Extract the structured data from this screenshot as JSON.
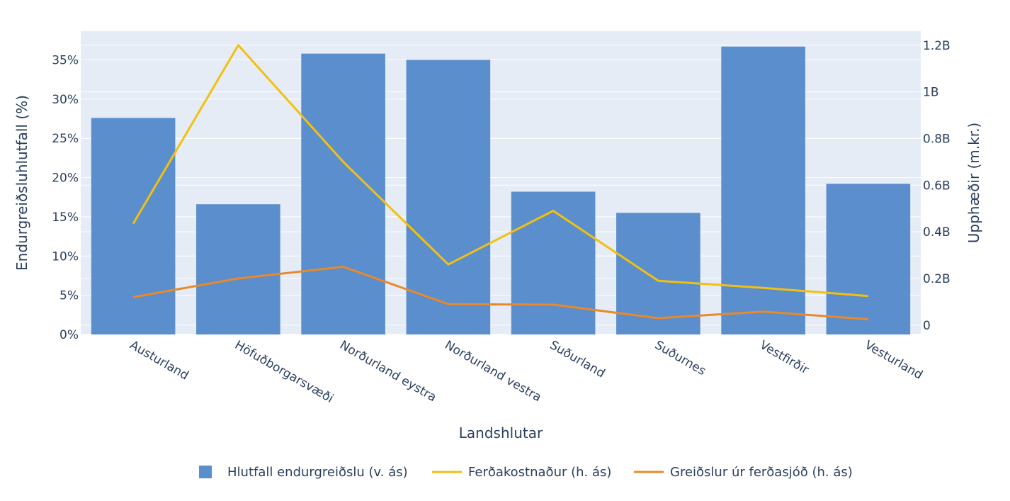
{
  "chart_data": {
    "type": "bar+line",
    "categories": [
      "Austurland",
      "Höfuðborgarsvæði",
      "Norðurland eystra",
      "Norðurland vestra",
      "Suðurland",
      "Suðurnes",
      "Vestfirðir",
      "Vesturland"
    ],
    "bar_series": {
      "name": "Hlutfall endurgreiðslu (v. ás)",
      "axis": "left",
      "values": [
        0.276,
        0.166,
        0.358,
        0.35,
        0.182,
        0.155,
        0.367,
        0.192
      ],
      "color": "#5b8ecd"
    },
    "line_series": [
      {
        "name": "Ferðakostnaður (h. ás)",
        "axis": "right",
        "values": [
          435000000,
          1200000000,
          700000000,
          260000000,
          490000000,
          190000000,
          160000000,
          125000000
        ],
        "color": "#f2c00f"
      },
      {
        "name": "Greiðslur úr ferðasjóð (h. ás)",
        "axis": "right",
        "values": [
          120000000,
          200000000,
          250000000,
          90000000,
          88000000,
          30000000,
          58000000,
          25000000
        ],
        "color": "#e8892b"
      }
    ],
    "xlabel": "Landshlutar",
    "ylabel_left": "Endurgreiðsluhlutfall (%)",
    "ylabel_right": "Upphæðir (m.kr.)",
    "ylim_left": [
      0,
      0.3866
    ],
    "ylim_right": [
      -40000000,
      1260000000
    ],
    "left_ticks": [
      {
        "value": 0,
        "label": "0%"
      },
      {
        "value": 0.05,
        "label": "5%"
      },
      {
        "value": 0.1,
        "label": "10%"
      },
      {
        "value": 0.15,
        "label": "15%"
      },
      {
        "value": 0.2,
        "label": "20%"
      },
      {
        "value": 0.25,
        "label": "25%"
      },
      {
        "value": 0.3,
        "label": "30%"
      },
      {
        "value": 0.35,
        "label": "35%"
      }
    ],
    "right_ticks": [
      {
        "value": 0,
        "label": "0"
      },
      {
        "value": 200000000,
        "label": "0.2B"
      },
      {
        "value": 400000000,
        "label": "0.4B"
      },
      {
        "value": 600000000,
        "label": "0.6B"
      },
      {
        "value": 800000000,
        "label": "0.8B"
      },
      {
        "value": 1000000000,
        "label": "1B"
      },
      {
        "value": 1200000000,
        "label": "1.2B"
      }
    ],
    "grid": true,
    "legend_position": "bottom-center",
    "plot_bg": "#e5ecf6"
  }
}
